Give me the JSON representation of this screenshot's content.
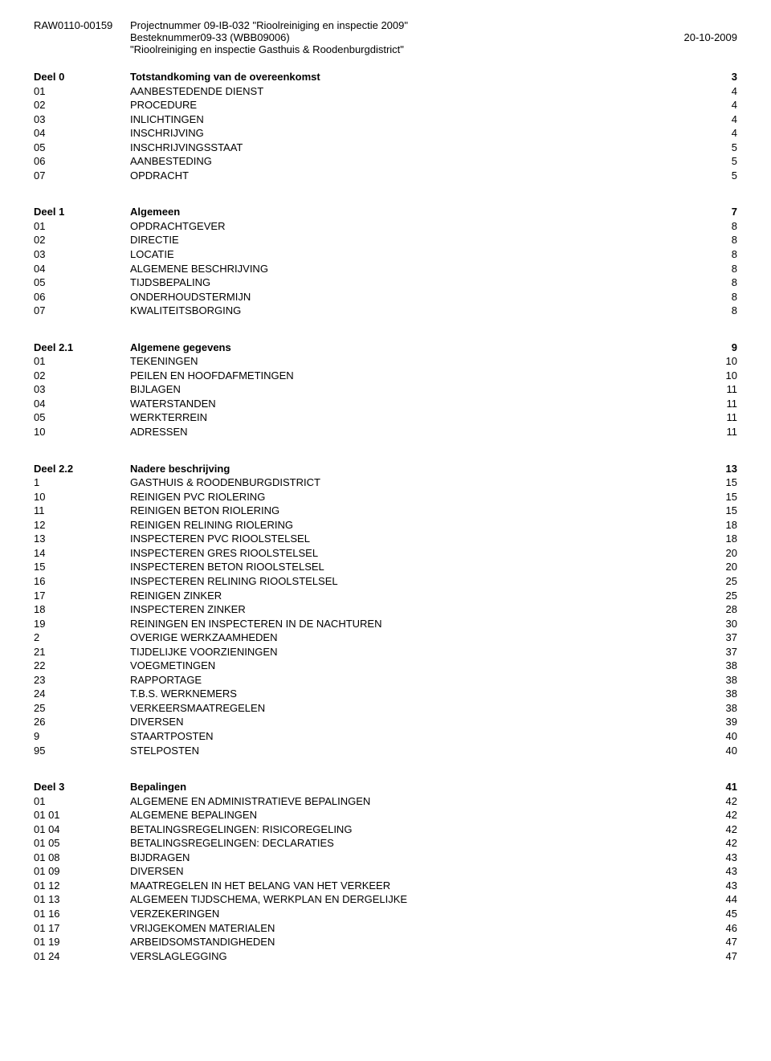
{
  "header": {
    "doc_id": "RAW0110-00159",
    "line1": "Projectnummer 09-IB-032 \"Rioolreiniging en inspectie 2009\"",
    "line2": "Besteknummer09-33 (WBB09006)",
    "line3": "\"Rioolreiniging en inspectie Gasthuis & Roodenburgdistrict\"",
    "date": "20-10-2009"
  },
  "sections": [
    {
      "title_code": "Deel 0",
      "title_text": "Totstandkoming van de overeenkomst",
      "title_page": "3",
      "items": [
        {
          "code": "01",
          "text": "AANBESTEDENDE DIENST",
          "page": "4"
        },
        {
          "code": "02",
          "text": "PROCEDURE",
          "page": "4"
        },
        {
          "code": "03",
          "text": "INLICHTINGEN",
          "page": "4"
        },
        {
          "code": "04",
          "text": "INSCHRIJVING",
          "page": "4"
        },
        {
          "code": "05",
          "text": "INSCHRIJVINGSSTAAT",
          "page": "5"
        },
        {
          "code": "06",
          "text": "AANBESTEDING",
          "page": "5"
        },
        {
          "code": "07",
          "text": "OPDRACHT",
          "page": "5"
        }
      ]
    },
    {
      "title_code": "Deel 1",
      "title_text": "Algemeen",
      "title_page": "7",
      "items": [
        {
          "code": "01",
          "text": "OPDRACHTGEVER",
          "page": "8"
        },
        {
          "code": "02",
          "text": "DIRECTIE",
          "page": "8"
        },
        {
          "code": "03",
          "text": "LOCATIE",
          "page": "8"
        },
        {
          "code": "04",
          "text": "ALGEMENE BESCHRIJVING",
          "page": "8"
        },
        {
          "code": "05",
          "text": "TIJDSBEPALING",
          "page": "8"
        },
        {
          "code": "06",
          "text": "ONDERHOUDSTERMIJN",
          "page": "8"
        },
        {
          "code": "07",
          "text": "KWALITEITSBORGING",
          "page": "8"
        }
      ]
    },
    {
      "title_code": "Deel 2.1",
      "title_text": "Algemene gegevens",
      "title_page": "9",
      "items": [
        {
          "code": "01",
          "text": "TEKENINGEN",
          "page": "10"
        },
        {
          "code": "02",
          "text": "PEILEN EN HOOFDAFMETINGEN",
          "page": "10"
        },
        {
          "code": "03",
          "text": "BIJLAGEN",
          "page": "11"
        },
        {
          "code": "04",
          "text": "WATERSTANDEN",
          "page": "11"
        },
        {
          "code": "05",
          "text": "WERKTERREIN",
          "page": "11"
        },
        {
          "code": "10",
          "text": "ADRESSEN",
          "page": "11"
        }
      ]
    },
    {
      "title_code": "Deel 2.2",
      "title_text": "Nadere beschrijving",
      "title_page": "13",
      "items": [
        {
          "code": "1",
          "text": "GASTHUIS & ROODENBURGDISTRICT",
          "page": "15"
        },
        {
          "code": "10",
          "text": "REINIGEN PVC RIOLERING",
          "page": "15"
        },
        {
          "code": "11",
          "text": "REINIGEN BETON RIOLERING",
          "page": "15"
        },
        {
          "code": "12",
          "text": "REINIGEN RELINING RIOLERING",
          "page": "18"
        },
        {
          "code": "13",
          "text": "INSPECTEREN PVC RIOOLSTELSEL",
          "page": "18"
        },
        {
          "code": "14",
          "text": "INSPECTEREN GRES RIOOLSTELSEL",
          "page": "20"
        },
        {
          "code": "15",
          "text": "INSPECTEREN BETON RIOOLSTELSEL",
          "page": "20"
        },
        {
          "code": "16",
          "text": "INSPECTEREN RELINING RIOOLSTELSEL",
          "page": "25"
        },
        {
          "code": "17",
          "text": "REINIGEN ZINKER",
          "page": "25"
        },
        {
          "code": "18",
          "text": "INSPECTEREN ZINKER",
          "page": "28"
        },
        {
          "code": "19",
          "text": "REININGEN EN INSPECTEREN IN DE NACHTUREN",
          "page": "30"
        },
        {
          "code": "2",
          "text": "OVERIGE WERKZAAMHEDEN",
          "page": "37"
        },
        {
          "code": "21",
          "text": "TIJDELIJKE VOORZIENINGEN",
          "page": "37"
        },
        {
          "code": "22",
          "text": "VOEGMETINGEN",
          "page": "38"
        },
        {
          "code": "23",
          "text": "RAPPORTAGE",
          "page": "38"
        },
        {
          "code": "24",
          "text": "T.B.S. WERKNEMERS",
          "page": "38"
        },
        {
          "code": "25",
          "text": "VERKEERSMAATREGELEN",
          "page": "38"
        },
        {
          "code": "26",
          "text": "DIVERSEN",
          "page": "39"
        },
        {
          "code": "9",
          "text": "STAARTPOSTEN",
          "page": "40"
        },
        {
          "code": "95",
          "text": "STELPOSTEN",
          "page": "40"
        }
      ]
    },
    {
      "title_code": "Deel 3",
      "title_text": "Bepalingen",
      "title_page": "41",
      "items": [
        {
          "code": "01",
          "text": "ALGEMENE EN ADMINISTRATIEVE BEPALINGEN",
          "page": "42"
        },
        {
          "code": "01 01",
          "text": "ALGEMENE BEPALINGEN",
          "page": "42"
        },
        {
          "code": "01 04",
          "text": "BETALINGSREGELINGEN: RISICOREGELING",
          "page": "42"
        },
        {
          "code": "01 05",
          "text": "BETALINGSREGELINGEN: DECLARATIES",
          "page": "42"
        },
        {
          "code": "01 08",
          "text": "BIJDRAGEN",
          "page": "43"
        },
        {
          "code": "01 09",
          "text": "DIVERSEN",
          "page": "43"
        },
        {
          "code": "01 12",
          "text": "MAATREGELEN IN HET BELANG VAN HET VERKEER",
          "page": "43"
        },
        {
          "code": "01 13",
          "text": "ALGEMEEN TIJDSCHEMA, WERKPLAN EN DERGELIJKE",
          "page": "44"
        },
        {
          "code": "01 16",
          "text": "VERZEKERINGEN",
          "page": "45"
        },
        {
          "code": "01 17",
          "text": "VRIJGEKOMEN MATERIALEN",
          "page": "46"
        },
        {
          "code": "01 19",
          "text": "ARBEIDSOMSTANDIGHEDEN",
          "page": "47"
        },
        {
          "code": "01 24",
          "text": "VERSLAGLEGGING",
          "page": "47"
        }
      ]
    }
  ]
}
